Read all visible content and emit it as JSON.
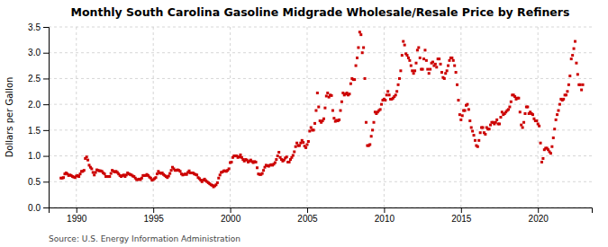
{
  "chart_data": {
    "type": "scatter",
    "title": "Monthly South Carolina Gasoline Midgrade Wholesale/Resale Price by Refiners",
    "y_label": "Dollars per Gallon",
    "annotations": [
      "Source: U.S. Energy Information Administration"
    ],
    "color": "#cc0000",
    "marker": "square",
    "grid": true,
    "xlim": [
      1988.2,
      2023.5
    ],
    "ylim": [
      0.0,
      3.5
    ],
    "xticks": [
      1990,
      1995,
      2000,
      2005,
      2010,
      2015,
      2020
    ],
    "yticks": [
      {
        "value": 0.0,
        "label": "0.0"
      },
      0.5,
      {
        "value": 1.0,
        "label": "1.0"
      },
      1.5,
      {
        "value": 2.0,
        "label": "2.0"
      },
      2.5,
      {
        "value": 3.0,
        "label": "3.0"
      },
      3.5
    ],
    "x": [
      1989,
      1989.0833333333333,
      1989.1666666666667,
      1989.25,
      1989.3333333333333,
      1989.4166666666667,
      1989.5,
      1989.5833333333333,
      1989.6666666666667,
      1989.75,
      1989.8333333333333,
      1989.9166666666667,
      1990,
      1990.0833333333333,
      1990.1666666666667,
      1990.25,
      1990.3333333333333,
      1990.4166666666667,
      1990.5,
      1990.5833333333333,
      1990.6666666666667,
      1990.75,
      1990.8333333333333,
      1990.9166666666667,
      1991,
      1991.0833333333333,
      1991.1666666666667,
      1991.25,
      1991.3333333333333,
      1991.4166666666667,
      1991.5,
      1991.5833333333333,
      1991.6666666666667,
      1991.75,
      1991.8333333333333,
      1991.9166666666667,
      1992,
      1992.0833333333333,
      1992.1666666666667,
      1992.25,
      1992.3333333333333,
      1992.4166666666667,
      1992.5,
      1992.5833333333333,
      1992.6666666666667,
      1992.75,
      1992.8333333333333,
      1992.9166666666667,
      1993,
      1993.0833333333333,
      1993.1666666666667,
      1993.25,
      1993.3333333333333,
      1993.4166666666667,
      1993.5,
      1993.5833333333333,
      1993.6666666666667,
      1993.75,
      1993.8333333333333,
      1993.9166666666667,
      1994,
      1994.0833333333333,
      1994.1666666666667,
      1994.25,
      1994.3333333333333,
      1994.4166666666667,
      1994.5,
      1994.5833333333333,
      1994.6666666666667,
      1994.75,
      1994.8333333333333,
      1994.9166666666667,
      1995,
      1995.0833333333333,
      1995.1666666666667,
      1995.25,
      1995.3333333333333,
      1995.4166666666667,
      1995.5,
      1995.5833333333333,
      1995.6666666666667,
      1995.75,
      1995.8333333333333,
      1995.9166666666667,
      1996,
      1996.0833333333333,
      1996.1666666666667,
      1996.25,
      1996.3333333333333,
      1996.4166666666667,
      1996.5,
      1996.5833333333333,
      1996.6666666666667,
      1996.75,
      1996.8333333333333,
      1996.9166666666667,
      1997,
      1997.0833333333333,
      1997.1666666666667,
      1997.25,
      1997.3333333333333,
      1997.4166666666667,
      1997.5,
      1997.5833333333333,
      1997.6666666666667,
      1997.75,
      1997.8333333333333,
      1997.9166666666667,
      1998,
      1998.0833333333333,
      1998.1666666666667,
      1998.25,
      1998.3333333333333,
      1998.4166666666667,
      1998.5,
      1998.5833333333333,
      1998.6666666666667,
      1998.75,
      1998.8333333333333,
      1998.9166666666667,
      1999,
      1999.0833333333333,
      1999.1666666666667,
      1999.25,
      1999.3333333333333,
      1999.4166666666667,
      1999.5,
      1999.5833333333333,
      1999.6666666666667,
      1999.75,
      1999.8333333333333,
      1999.9166666666667,
      2000,
      2000.0833333333333,
      2000.1666666666667,
      2000.25,
      2000.3333333333333,
      2000.4166666666667,
      2000.5,
      2000.5833333333333,
      2000.6666666666667,
      2000.75,
      2000.8333333333333,
      2000.9166666666667,
      2001,
      2001.0833333333333,
      2001.1666666666667,
      2001.25,
      2001.3333333333333,
      2001.4166666666667,
      2001.5,
      2001.5833333333333,
      2001.6666666666667,
      2001.75,
      2001.8333333333333,
      2001.9166666666667,
      2002,
      2002.0833333333333,
      2002.1666666666667,
      2002.25,
      2002.3333333333333,
      2002.4166666666667,
      2002.5,
      2002.5833333333333,
      2002.6666666666667,
      2002.75,
      2002.8333333333333,
      2002.9166666666667,
      2003,
      2003.0833333333333,
      2003.1666666666667,
      2003.25,
      2003.3333333333333,
      2003.4166666666667,
      2003.5,
      2003.5833333333333,
      2003.6666666666667,
      2003.75,
      2003.8333333333333,
      2003.9166666666667,
      2004,
      2004.0833333333333,
      2004.1666666666667,
      2004.25,
      2004.3333333333333,
      2004.4166666666667,
      2004.5,
      2004.5833333333333,
      2004.6666666666667,
      2004.75,
      2004.8333333333333,
      2004.9166666666667,
      2005,
      2005.0833333333333,
      2005.1666666666667,
      2005.25,
      2005.3333333333333,
      2005.4166666666667,
      2005.5,
      2005.5833333333333,
      2005.6666666666667,
      2005.75,
      2005.8333333333333,
      2005.9166666666667,
      2006,
      2006.0833333333333,
      2006.1666666666667,
      2006.25,
      2006.3333333333333,
      2006.4166666666667,
      2006.5,
      2006.5833333333333,
      2006.6666666666667,
      2006.75,
      2006.8333333333333,
      2006.9166666666667,
      2007,
      2007.0833333333333,
      2007.1666666666667,
      2007.25,
      2007.3333333333333,
      2007.4166666666667,
      2007.5,
      2007.5833333333333,
      2007.6666666666667,
      2007.75,
      2007.8333333333333,
      2007.9166666666667,
      2008,
      2008.0833333333333,
      2008.1666666666667,
      2008.25,
      2008.3333333333333,
      2008.4166666666667,
      2008.5,
      2008.5833333333333,
      2008.6666666666667,
      2008.75,
      2008.8333333333333,
      2008.9166666666667,
      2009,
      2009.0833333333333,
      2009.1666666666667,
      2009.25,
      2009.3333333333333,
      2009.4166666666667,
      2009.5,
      2009.5833333333333,
      2009.6666666666667,
      2009.75,
      2009.8333333333333,
      2009.9166666666667,
      2010,
      2010.0833333333333,
      2010.1666666666667,
      2010.25,
      2010.3333333333333,
      2010.4166666666667,
      2010.5,
      2010.5833333333333,
      2010.6666666666667,
      2010.75,
      2010.8333333333333,
      2010.9166666666667,
      2011,
      2011.0833333333333,
      2011.1666666666667,
      2011.25,
      2011.3333333333333,
      2011.4166666666667,
      2011.5,
      2011.5833333333333,
      2011.6666666666667,
      2011.75,
      2011.8333333333333,
      2011.9166666666667,
      2012,
      2012.0833333333333,
      2012.1666666666667,
      2012.25,
      2012.3333333333333,
      2012.4166666666667,
      2012.5,
      2012.5833333333333,
      2012.6666666666667,
      2012.75,
      2012.8333333333333,
      2012.9166666666667,
      2013,
      2013.0833333333333,
      2013.1666666666667,
      2013.25,
      2013.3333333333333,
      2013.4166666666667,
      2013.5,
      2013.5833333333333,
      2013.6666666666667,
      2013.75,
      2013.8333333333333,
      2013.9166666666667,
      2014,
      2014.0833333333333,
      2014.1666666666667,
      2014.25,
      2014.3333333333333,
      2014.4166666666667,
      2014.5,
      2014.5833333333333,
      2014.6666666666667,
      2014.75,
      2014.8333333333333,
      2014.9166666666667,
      2015,
      2015.0833333333333,
      2015.1666666666667,
      2015.25,
      2015.3333333333333,
      2015.4166666666667,
      2015.5,
      2015.5833333333333,
      2015.6666666666667,
      2015.75,
      2015.8333333333333,
      2015.9166666666667,
      2016,
      2016.0833333333333,
      2016.1666666666667,
      2016.25,
      2016.3333333333333,
      2016.4166666666667,
      2016.5,
      2016.5833333333333,
      2016.6666666666667,
      2016.75,
      2016.8333333333333,
      2016.9166666666667,
      2017,
      2017.0833333333333,
      2017.1666666666667,
      2017.25,
      2017.3333333333333,
      2017.4166666666667,
      2017.5,
      2017.5833333333333,
      2017.6666666666667,
      2017.75,
      2017.8333333333333,
      2017.9166666666667,
      2018,
      2018.0833333333333,
      2018.1666666666667,
      2018.25,
      2018.3333333333333,
      2018.4166666666667,
      2018.5,
      2018.5833333333333,
      2018.6666666666667,
      2018.75,
      2018.8333333333333,
      2018.9166666666667,
      2019,
      2019.0833333333333,
      2019.1666666666667,
      2019.25,
      2019.3333333333333,
      2019.4166666666667,
      2019.5,
      2019.5833333333333,
      2019.6666666666667,
      2019.75,
      2019.8333333333333,
      2019.9166666666667,
      2020,
      2020.0833333333333,
      2020.1666666666667,
      2020.25,
      2020.3333333333333,
      2020.4166666666667,
      2020.5,
      2020.5833333333333,
      2020.6666666666667,
      2020.75,
      2020.8333333333333,
      2020.9166666666667,
      2021,
      2021.0833333333333,
      2021.1666666666667,
      2021.25,
      2021.3333333333333,
      2021.4166666666667,
      2021.5,
      2021.5833333333333,
      2021.6666666666667,
      2021.75,
      2021.8333333333333,
      2021.9166666666667,
      2022,
      2022.0833333333333,
      2022.1666666666667,
      2022.25,
      2022.3333333333333,
      2022.4166666666667,
      2022.5,
      2022.5833333333333,
      2022.6666666666667,
      2022.75,
      2022.8333333333333,
      2022.9166666666667
    ],
    "values": [
      0.57,
      0.57,
      0.58,
      0.65,
      0.67,
      0.65,
      0.62,
      0.63,
      0.62,
      0.6,
      0.59,
      0.58,
      0.61,
      0.62,
      0.6,
      0.65,
      0.7,
      0.7,
      0.72,
      0.95,
      0.98,
      0.92,
      0.82,
      0.78,
      0.75,
      0.68,
      0.63,
      0.68,
      0.73,
      0.72,
      0.71,
      0.71,
      0.7,
      0.67,
      0.65,
      0.6,
      0.6,
      0.6,
      0.6,
      0.66,
      0.72,
      0.7,
      0.69,
      0.7,
      0.68,
      0.65,
      0.62,
      0.6,
      0.62,
      0.63,
      0.6,
      0.63,
      0.67,
      0.65,
      0.64,
      0.63,
      0.61,
      0.6,
      0.57,
      0.54,
      0.54,
      0.55,
      0.54,
      0.57,
      0.62,
      0.62,
      0.62,
      0.64,
      0.62,
      0.59,
      0.57,
      0.53,
      0.54,
      0.56,
      0.58,
      0.65,
      0.7,
      0.67,
      0.66,
      0.67,
      0.64,
      0.62,
      0.6,
      0.58,
      0.61,
      0.66,
      0.72,
      0.78,
      0.75,
      0.72,
      0.72,
      0.73,
      0.72,
      0.7,
      0.65,
      0.63,
      0.64,
      0.65,
      0.64,
      0.68,
      0.71,
      0.67,
      0.67,
      0.67,
      0.65,
      0.64,
      0.63,
      0.58,
      0.56,
      0.53,
      0.5,
      0.53,
      0.55,
      0.52,
      0.5,
      0.48,
      0.46,
      0.44,
      0.43,
      0.4,
      0.42,
      0.44,
      0.48,
      0.57,
      0.63,
      0.68,
      0.69,
      0.71,
      0.71,
      0.7,
      0.72,
      0.75,
      0.87,
      0.88,
      0.97,
      1.0,
      1.0,
      1.0,
      0.97,
      0.98,
      1.02,
      0.97,
      0.93,
      0.9,
      0.93,
      0.92,
      0.88,
      0.9,
      0.92,
      0.89,
      0.87,
      0.89,
      0.88,
      0.77,
      0.65,
      0.64,
      0.64,
      0.66,
      0.72,
      0.78,
      0.82,
      0.81,
      0.8,
      0.82,
      0.83,
      0.82,
      0.84,
      0.87,
      0.93,
      1.0,
      1.07,
      0.97,
      0.93,
      0.9,
      0.92,
      0.96,
      0.98,
      0.88,
      0.88,
      0.93,
      0.97,
      1.01,
      1.08,
      1.18,
      1.25,
      1.2,
      1.2,
      1.25,
      1.3,
      1.26,
      1.19,
      1.16,
      1.22,
      1.28,
      1.48,
      1.55,
      1.5,
      1.5,
      1.63,
      1.88,
      2.22,
      1.95,
      1.68,
      1.65,
      1.68,
      1.72,
      1.93,
      2.16,
      2.22,
      2.14,
      2.18,
      2.17,
      1.88,
      1.73,
      1.67,
      1.69,
      1.68,
      1.7,
      1.88,
      2.05,
      2.22,
      2.18,
      2.2,
      2.22,
      2.18,
      2.2,
      2.4,
      2.5,
      2.48,
      2.48,
      2.75,
      2.9,
      3.1,
      3.4,
      3.35,
      3.0,
      3.1,
      2.5,
      1.65,
      1.2,
      1.2,
      1.22,
      1.38,
      1.5,
      1.65,
      1.85,
      1.82,
      1.85,
      1.88,
      1.9,
      2.0,
      2.08,
      2.1,
      2.08,
      2.18,
      2.25,
      2.18,
      2.1,
      2.1,
      2.12,
      2.15,
      2.18,
      2.25,
      2.38,
      2.5,
      2.65,
      2.95,
      3.22,
      3.15,
      2.98,
      2.95,
      2.9,
      2.85,
      2.75,
      2.65,
      2.6,
      2.65,
      2.8,
      3.05,
      3.1,
      2.9,
      2.68,
      2.68,
      2.88,
      3.05,
      2.85,
      2.68,
      2.6,
      2.68,
      2.8,
      2.82,
      2.75,
      2.78,
      2.72,
      2.88,
      2.88,
      2.78,
      2.62,
      2.52,
      2.5,
      2.6,
      2.65,
      2.75,
      2.85,
      2.9,
      2.9,
      2.85,
      2.75,
      2.62,
      2.38,
      2.08,
      1.8,
      1.7,
      1.78,
      1.88,
      1.88,
      1.98,
      2.0,
      1.9,
      1.68,
      1.55,
      1.48,
      1.4,
      1.3,
      1.2,
      1.18,
      1.3,
      1.45,
      1.55,
      1.55,
      1.45,
      1.42,
      1.55,
      1.52,
      1.52,
      1.6,
      1.65,
      1.65,
      1.62,
      1.65,
      1.7,
      1.62,
      1.62,
      1.75,
      1.85,
      1.8,
      1.82,
      1.85,
      1.88,
      1.9,
      1.95,
      2.05,
      2.18,
      2.18,
      2.15,
      2.1,
      2.12,
      2.12,
      1.85,
      1.6,
      1.55,
      1.65,
      1.82,
      1.95,
      1.95,
      1.82,
      1.85,
      1.82,
      1.8,
      1.72,
      1.68,
      1.68,
      1.62,
      1.58,
      1.25,
      0.88,
      0.95,
      1.12,
      1.15,
      1.15,
      1.12,
      1.08,
      1.05,
      1.18,
      1.35,
      1.52,
      1.7,
      1.8,
      1.88,
      2.0,
      2.1,
      2.08,
      2.1,
      2.18,
      2.18,
      2.25,
      2.38,
      2.55,
      2.88,
      2.95,
      3.08,
      3.22,
      2.8,
      2.58,
      2.38,
      2.38,
      2.28,
      2.38
    ]
  }
}
